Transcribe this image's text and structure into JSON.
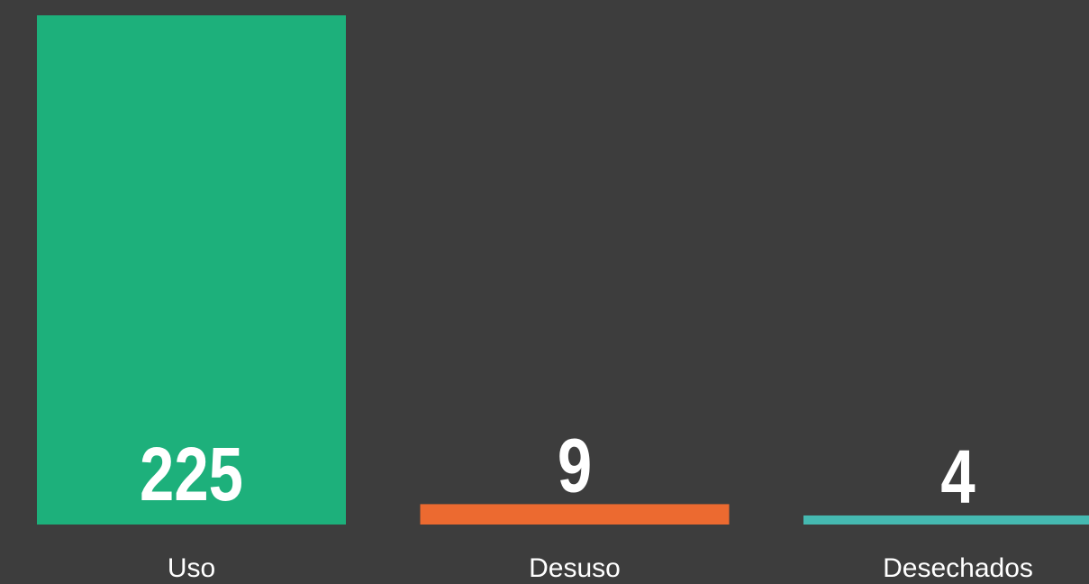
{
  "chart_data": {
    "type": "bar",
    "categories": [
      "Uso",
      "Desuso",
      "Desechados"
    ],
    "values": [
      225,
      9,
      4
    ],
    "colors": [
      "#1db07b",
      "#ec6a30",
      "#45b9b1"
    ]
  }
}
